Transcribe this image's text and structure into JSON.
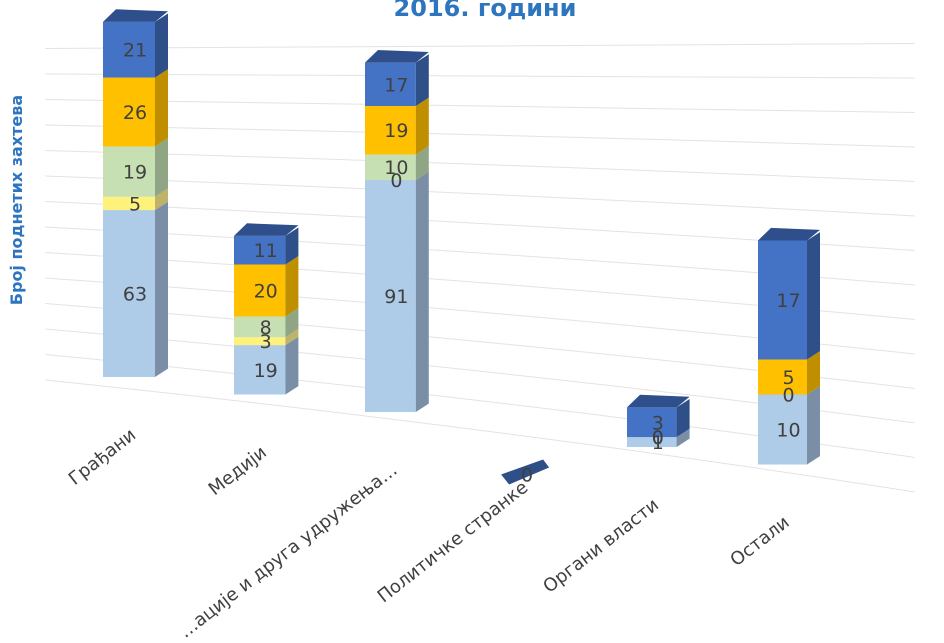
{
  "chart_data": {
    "type": "bar",
    "stacked": true,
    "three_d": true,
    "title": "2016. години",
    "ylabel": "Број поднетих захтева",
    "categories": [
      "Грађани",
      "Медији",
      "…ацијe и друга удружења…",
      "Политичке странке",
      "Органи власти",
      "Остали"
    ],
    "series": [
      {
        "values": [
          63,
          19,
          91,
          0,
          1,
          10
        ]
      },
      {
        "values": [
          5,
          3,
          0,
          0,
          0,
          0
        ]
      },
      {
        "values": [
          19,
          8,
          10,
          0,
          0,
          0
        ]
      },
      {
        "values": [
          26,
          20,
          19,
          0,
          0,
          5
        ]
      },
      {
        "values": [
          21,
          11,
          17,
          0,
          3,
          17
        ]
      }
    ],
    "grid": true
  },
  "colors": {
    "title": "#2E75C0",
    "ylabel": "#2E75C0",
    "series": [
      "#AECBE8",
      "#FFF27A",
      "#C6E0B4",
      "#FFC000",
      "#4472C4"
    ],
    "series_side": [
      "#7A8FA5",
      "#BDB46A",
      "#8FA584",
      "#BF8F00",
      "#2F4F88"
    ],
    "series_top": [
      "#C9DCF0",
      "#FFF7A8",
      "#DCEBD0",
      "#FFD966",
      "#2E4F8C"
    ],
    "gridline": "#E3E3E3",
    "text": "#404040"
  }
}
